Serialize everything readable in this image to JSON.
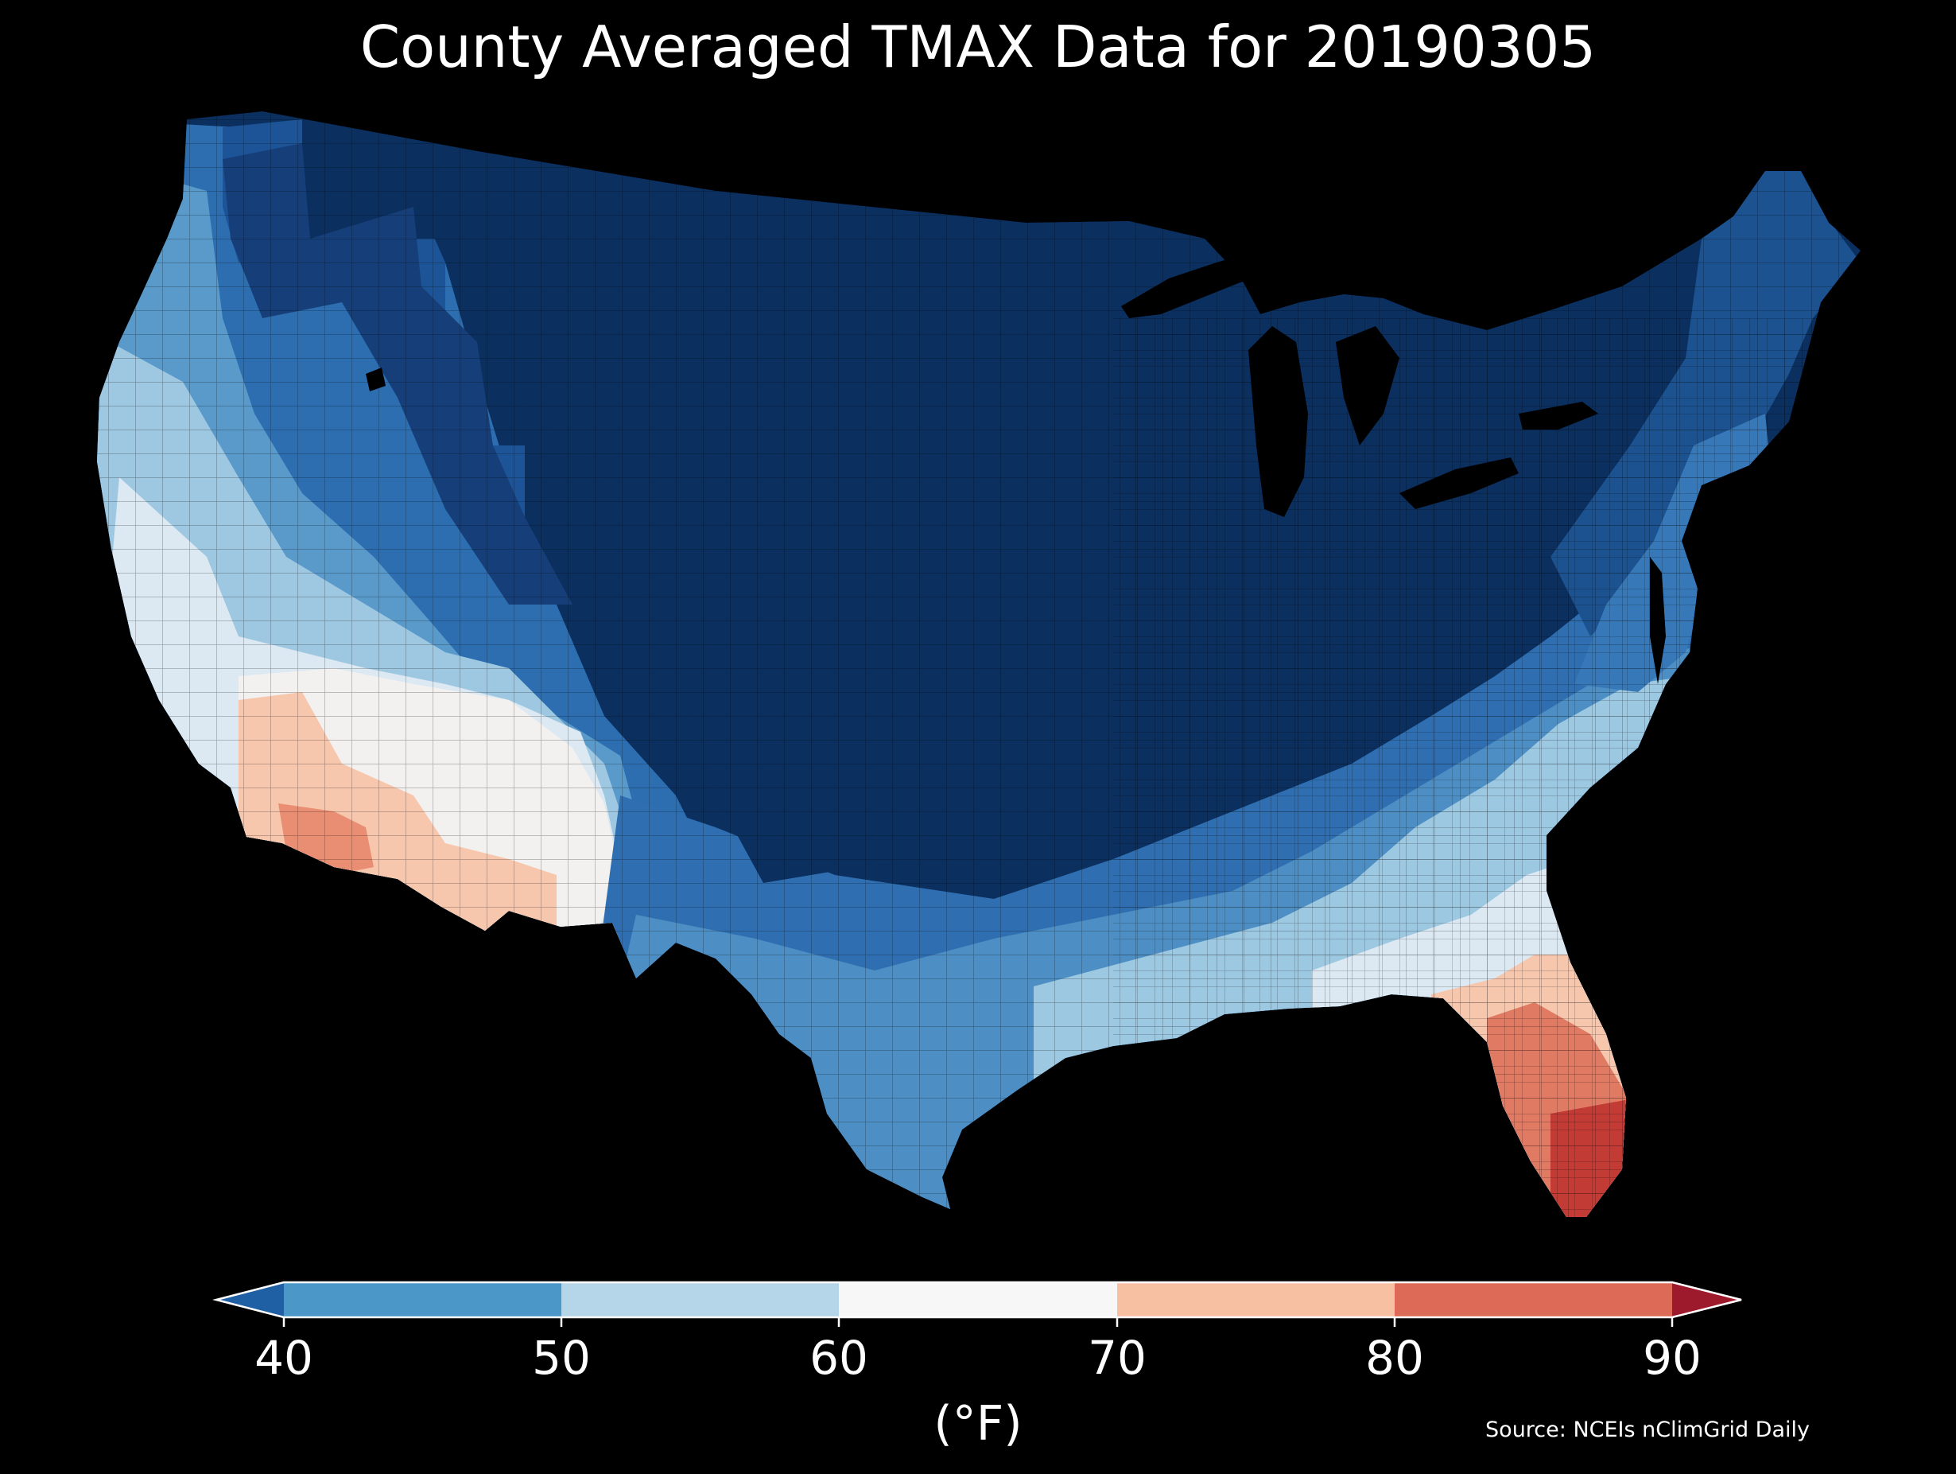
{
  "title": "County Averaged TMAX Data for 20190305",
  "colorbar": {
    "ticks": [
      "40",
      "50",
      "60",
      "70",
      "80",
      "90"
    ],
    "units": "(°F)",
    "bins": [
      {
        "range": "<40",
        "color": "#1f5fa3"
      },
      {
        "range": "40-50",
        "color": "#4b97c8"
      },
      {
        "range": "50-60",
        "color": "#b5d6e8"
      },
      {
        "range": "60-70",
        "color": "#f7f7f7"
      },
      {
        "range": "70-80",
        "color": "#f8c0a3"
      },
      {
        "range": "80-90",
        "color": "#dc6a56"
      },
      {
        "range": ">90",
        "color": "#9c1a2b"
      }
    ]
  },
  "source": "Source: NCEIs nClimGrid Daily",
  "colors": {
    "background": "#000000",
    "coldest": "#0b2f5f",
    "cold": "#1a4d8c",
    "cool": "#3a7cbd",
    "mild": "#86bcdc",
    "pale": "#dce9f2",
    "neutral": "#f3f1ef",
    "warm": "#f6c6ad",
    "hot": "#e2806a",
    "hottest": "#c23b35"
  }
}
